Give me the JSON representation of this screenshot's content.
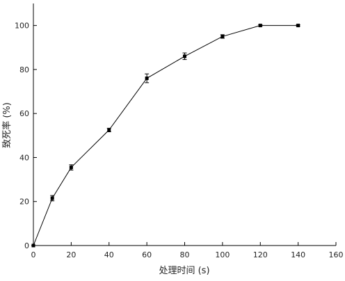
{
  "chart_data": {
    "type": "line",
    "x_label": "处理时间 (s)",
    "y_label": "致死率 (%)",
    "x": [
      0,
      10,
      20,
      40,
      60,
      80,
      100,
      120,
      140
    ],
    "series": [
      {
        "color": "#000000",
        "values": [
          0,
          21.5,
          35.5,
          52.5,
          76,
          86,
          95,
          100,
          100
        ],
        "errors": [
          0,
          1.2,
          1.2,
          0.8,
          2,
          1.5,
          0.8,
          0.3,
          0.3
        ]
      }
    ],
    "xlim": [
      0,
      160
    ],
    "xticks": [
      0,
      20,
      40,
      60,
      80,
      100,
      120,
      140,
      160
    ],
    "ylim": [
      0,
      110
    ],
    "yticks": [
      0,
      20,
      40,
      60,
      80,
      100
    ]
  }
}
